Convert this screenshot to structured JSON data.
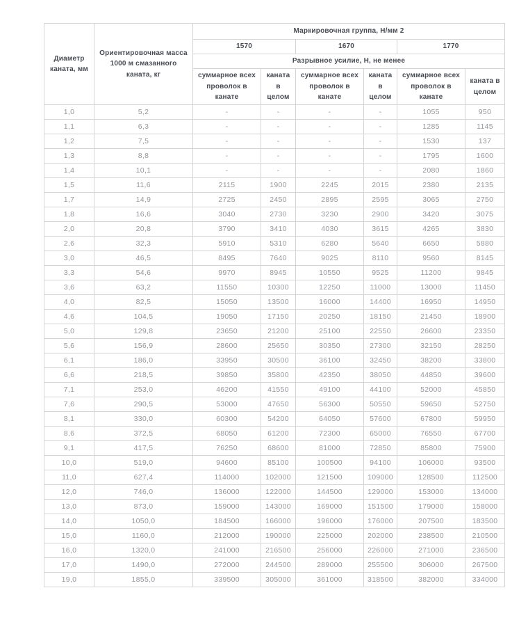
{
  "theme": {
    "border-color": "#d4d4d4",
    "header-text": "#474b52",
    "data-text": "#95979c",
    "bg": "#ffffff"
  },
  "table": {
    "header": {
      "col_diameter": "Диаметр каната, мм",
      "col_mass": "Ориентировочная масса 1000 м смазанного каната, кг",
      "group_title": "Маркировочная группа, Н/мм 2",
      "groups": [
        "1570",
        "1670",
        "1770"
      ],
      "breaking_title": "Разрывное усилие, Н, не менее",
      "sub_sum": "суммарное всех проволок в канате",
      "sub_whole": "каната в целом"
    },
    "column_keys": [
      "diameter",
      "mass",
      "sum-1570",
      "whole-1570",
      "sum-1670",
      "whole-1670",
      "sum-1770",
      "whole-1770"
    ],
    "rows": [
      [
        "1,0",
        "5,2",
        "-",
        "-",
        "-",
        "-",
        "1055",
        "950"
      ],
      [
        "1,1",
        "6,3",
        "-",
        "-",
        "-",
        "-",
        "1285",
        "1145"
      ],
      [
        "1,2",
        "7,5",
        "-",
        "-",
        "-",
        "-",
        "1530",
        "137"
      ],
      [
        "1,3",
        "8,8",
        "-",
        "-",
        "-",
        "-",
        "1795",
        "1600"
      ],
      [
        "1,4",
        "10,1",
        "-",
        "-",
        "-",
        "-",
        "2080",
        "1860"
      ],
      [
        "1,5",
        "11,6",
        "2115",
        "1900",
        "2245",
        "2015",
        "2380",
        "2135"
      ],
      [
        "1,7",
        "14,9",
        "2725",
        "2450",
        "2895",
        "2595",
        "3065",
        "2750"
      ],
      [
        "1,8",
        "16,6",
        "3040",
        "2730",
        "3230",
        "2900",
        "3420",
        "3075"
      ],
      [
        "2,0",
        "20,8",
        "3790",
        "3410",
        "4030",
        "3615",
        "4265",
        "3830"
      ],
      [
        "2,6",
        "32,3",
        "5910",
        "5310",
        "6280",
        "5640",
        "6650",
        "5880"
      ],
      [
        "3,0",
        "46,5",
        "8495",
        "7640",
        "9025",
        "8110",
        "9560",
        "8145"
      ],
      [
        "3,3",
        "54,6",
        "9970",
        "8945",
        "10550",
        "9525",
        "11200",
        "9845"
      ],
      [
        "3,6",
        "63,2",
        "11550",
        "10300",
        "12250",
        "11000",
        "13000",
        "11450"
      ],
      [
        "4,0",
        "82,5",
        "15050",
        "13500",
        "16000",
        "14400",
        "16950",
        "14950"
      ],
      [
        "4,6",
        "104,5",
        "19050",
        "17150",
        "20250",
        "18150",
        "21450",
        "18900"
      ],
      [
        "5,0",
        "129,8",
        "23650",
        "21200",
        "25100",
        "22550",
        "26600",
        "23350"
      ],
      [
        "5,6",
        "156,9",
        "28600",
        "25650",
        "30350",
        "27300",
        "32150",
        "28250"
      ],
      [
        "6,1",
        "186,0",
        "33950",
        "30500",
        "36100",
        "32450",
        "38200",
        "33800"
      ],
      [
        "6,6",
        "218,5",
        "39850",
        "35800",
        "42350",
        "38050",
        "44850",
        "39600"
      ],
      [
        "7,1",
        "253,0",
        "46200",
        "41550",
        "49100",
        "44100",
        "52000",
        "45850"
      ],
      [
        "7,6",
        "290,5",
        "53000",
        "47650",
        "56300",
        "50550",
        "59650",
        "52750"
      ],
      [
        "8,1",
        "330,0",
        "60300",
        "54200",
        "64050",
        "57600",
        "67800",
        "59950"
      ],
      [
        "8,6",
        "372,5",
        "68050",
        "61200",
        "72300",
        "65000",
        "76550",
        "67700"
      ],
      [
        "9,1",
        "417,5",
        "76250",
        "68600",
        "81000",
        "72850",
        "85800",
        "75900"
      ],
      [
        "10,0",
        "519,0",
        "94600",
        "85100",
        "100500",
        "94100",
        "106000",
        "93500"
      ],
      [
        "11,0",
        "627,4",
        "114000",
        "102000",
        "121500",
        "109000",
        "128500",
        "112500"
      ],
      [
        "12,0",
        "746,0",
        "136000",
        "122000",
        "144500",
        "129000",
        "153000",
        "134000"
      ],
      [
        "13,0",
        "873,0",
        "159000",
        "143000",
        "169000",
        "151500",
        "179000",
        "158000"
      ],
      [
        "14,0",
        "1050,0",
        "184500",
        "166000",
        "196000",
        "176000",
        "207500",
        "183500"
      ],
      [
        "15,0",
        "1160,0",
        "212000",
        "190000",
        "225000",
        "202000",
        "238500",
        "210500"
      ],
      [
        "16,0",
        "1320,0",
        "241000",
        "216500",
        "256000",
        "226000",
        "271000",
        "236500"
      ],
      [
        "17,0",
        "1490,0",
        "272000",
        "244500",
        "289000",
        "255500",
        "306000",
        "267500"
      ],
      [
        "19,0",
        "1855,0",
        "339500",
        "305000",
        "361000",
        "318500",
        "382000",
        "334000"
      ]
    ]
  }
}
